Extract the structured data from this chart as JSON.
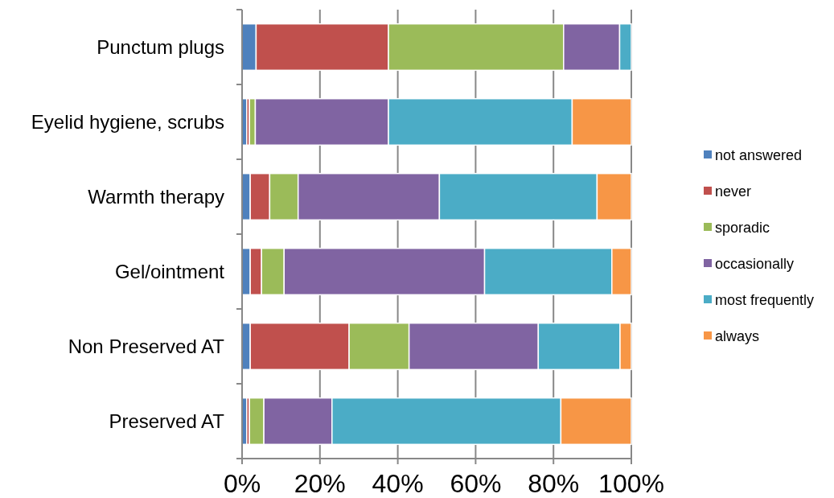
{
  "chart_data": {
    "type": "bar",
    "orientation": "horizontal",
    "stacked": true,
    "categories": [
      "Punctum plugs",
      "Eyelid hygiene, scrubs",
      "Warmth therapy",
      "Gel/ointment",
      "Non Preserved AT",
      "Preserved AT"
    ],
    "series": [
      {
        "name": "not answered",
        "color": "#4f81bd",
        "values": [
          3.6,
          1.2,
          2.1,
          2.1,
          2.1,
          1.2
        ]
      },
      {
        "name": "never",
        "color": "#c0504d",
        "values": [
          34.0,
          0.7,
          5.0,
          2.9,
          25.4,
          0.7
        ]
      },
      {
        "name": "sporadic",
        "color": "#9bbb59",
        "values": [
          45.0,
          1.5,
          7.3,
          5.8,
          15.4,
          3.7
        ]
      },
      {
        "name": "occasionally",
        "color": "#8064a2",
        "values": [
          14.4,
          34.2,
          36.3,
          51.5,
          33.2,
          17.5
        ]
      },
      {
        "name": "most frequently",
        "color": "#4bacc6",
        "values": [
          3.0,
          47.2,
          40.5,
          32.7,
          21.0,
          58.8
        ]
      },
      {
        "name": "always",
        "color": "#f79646",
        "values": [
          0,
          15.2,
          8.8,
          5.0,
          2.9,
          18.1
        ]
      }
    ],
    "xlim": [
      0,
      100
    ],
    "xticks": [
      {
        "value": 0,
        "label": "0%"
      },
      {
        "value": 20,
        "label": "20%"
      },
      {
        "value": 40,
        "label": "40%"
      },
      {
        "value": 60,
        "label": "60%"
      },
      {
        "value": 80,
        "label": "80%"
      },
      {
        "value": 100,
        "label": "100%"
      }
    ],
    "grid": "x",
    "legend": "right"
  }
}
